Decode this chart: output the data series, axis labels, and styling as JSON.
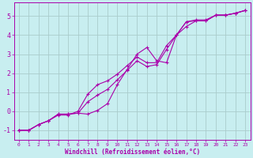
{
  "title": "",
  "xlabel": "Windchill (Refroidissement éolien,°C)",
  "ylabel": "",
  "xlim": [
    -0.5,
    23.5
  ],
  "ylim": [
    -1.5,
    5.7
  ],
  "yticks": [
    -1,
    0,
    1,
    2,
    3,
    4,
    5
  ],
  "xticks": [
    0,
    1,
    2,
    3,
    4,
    5,
    6,
    7,
    8,
    9,
    10,
    11,
    12,
    13,
    14,
    15,
    16,
    17,
    18,
    19,
    20,
    21,
    22,
    23
  ],
  "bg_color": "#c8eef0",
  "line_color": "#aa00aa",
  "grid_color": "#aacccc",
  "lines": [
    {
      "x": [
        0,
        1,
        2,
        3,
        4,
        5,
        6,
        7,
        8,
        9,
        10,
        11,
        12,
        13,
        14,
        15,
        16,
        17,
        18,
        19,
        20,
        21,
        22,
        23
      ],
      "y": [
        -1.0,
        -1.0,
        -0.7,
        -0.5,
        -0.15,
        -0.15,
        -0.1,
        -0.15,
        0.05,
        0.4,
        1.4,
        2.2,
        3.0,
        3.35,
        2.65,
        2.55,
        4.0,
        4.7,
        4.8,
        4.8,
        5.05,
        5.05,
        5.15,
        5.3
      ]
    },
    {
      "x": [
        0,
        1,
        2,
        3,
        4,
        5,
        6,
        7,
        8,
        9,
        10,
        11,
        12,
        13,
        14,
        15,
        16,
        17,
        18,
        19,
        20,
        21,
        22,
        23
      ],
      "y": [
        -1.0,
        -1.0,
        -0.7,
        -0.5,
        -0.15,
        -0.15,
        -0.1,
        0.5,
        0.85,
        1.15,
        1.65,
        2.15,
        2.65,
        2.35,
        2.45,
        3.25,
        4.0,
        4.45,
        4.75,
        4.75,
        5.05,
        5.05,
        5.15,
        5.3
      ]
    },
    {
      "x": [
        0,
        1,
        2,
        3,
        4,
        5,
        6,
        7,
        8,
        9,
        10,
        11,
        12,
        13,
        14,
        15,
        16,
        17,
        18,
        19,
        20,
        21,
        22,
        23
      ],
      "y": [
        -1.0,
        -1.0,
        -0.7,
        -0.5,
        -0.2,
        -0.2,
        0.0,
        0.9,
        1.4,
        1.6,
        1.95,
        2.4,
        2.85,
        2.55,
        2.55,
        3.45,
        4.0,
        4.7,
        4.75,
        4.75,
        5.05,
        5.05,
        5.15,
        5.3
      ]
    }
  ]
}
